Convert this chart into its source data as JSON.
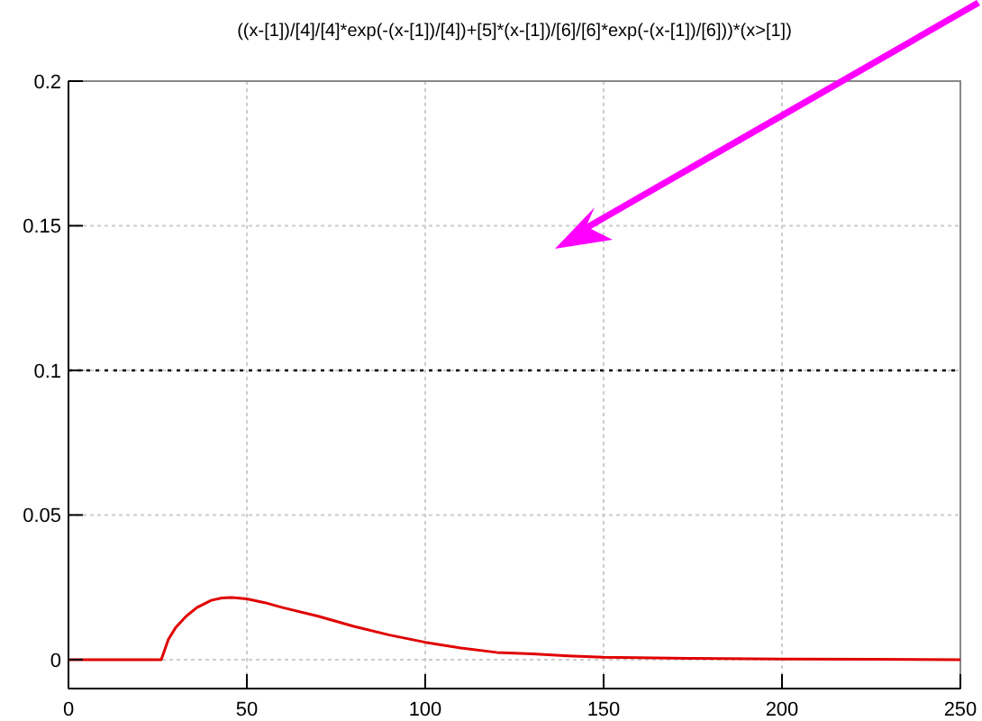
{
  "chart_data": {
    "type": "line",
    "title": "((x-[1])/[4]/[4]*exp(-(x-[1])/[4])+[5]*(x-[1])/[6]/[6]*exp(-(x-[1])/[6]))*(x>[1])",
    "x": [
      0,
      10,
      20,
      26,
      28,
      30,
      33,
      36,
      40,
      43,
      46,
      50,
      55,
      60,
      70,
      80,
      90,
      100,
      110,
      120,
      130,
      140,
      150,
      175,
      200,
      225,
      250
    ],
    "series": [
      {
        "color": "#e00000",
        "values": [
          0,
          0,
          0,
          0,
          0.007,
          0.011,
          0.015,
          0.018,
          0.0205,
          0.0213,
          0.0215,
          0.021,
          0.0197,
          0.018,
          0.015,
          0.0115,
          0.0085,
          0.006,
          0.004,
          0.0025,
          0.002,
          0.0013,
          0.0008,
          0.0004,
          0.0002,
          0.0001,
          0
        ]
      }
    ],
    "xlim": [
      0,
      250
    ],
    "xticks": [
      0,
      50,
      100,
      150,
      200,
      250
    ],
    "ylim": [
      -0.01,
      0.2
    ],
    "yticks": [
      0,
      0.05,
      0.1,
      0.15,
      0.2
    ],
    "grid": true,
    "line_style": "solid",
    "ref_lines": [
      {
        "axis": "y",
        "value": 0.1,
        "color": "#000000",
        "line_style": "dotted"
      }
    ]
  }
}
